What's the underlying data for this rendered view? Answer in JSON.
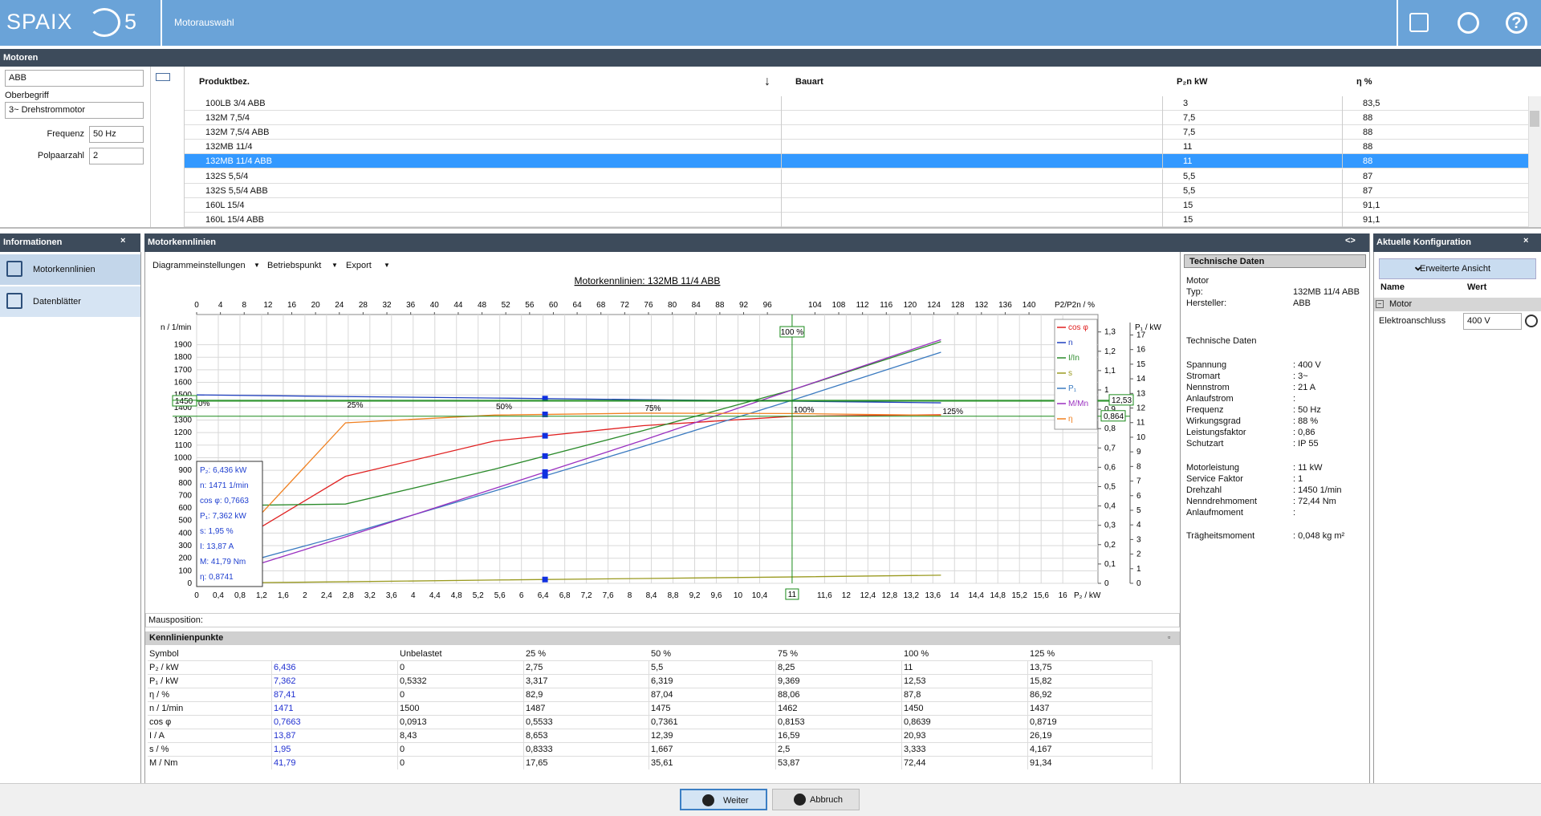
{
  "header": {
    "logo": "SPAIX",
    "logo_version": "5",
    "title": "Motorauswahl"
  },
  "motors_panel": {
    "title": "Motoren",
    "manufacturer": "ABB",
    "oberbegriff_label": "Oberbegriff",
    "oberbegriff": "3~ Drehstrommotor",
    "frequenz_label": "Frequenz",
    "frequenz": "50 Hz",
    "polpaarzahl_label": "Polpaarzahl",
    "polpaarzahl": "2"
  },
  "motor_table": {
    "columns": [
      "Produktbez.",
      "Bauart",
      "P₂n kW",
      "η %"
    ],
    "selected_row": 4,
    "rows": [
      [
        "100LB 3/4 ABB",
        "3",
        "83,5"
      ],
      [
        "132M 7,5/4",
        "7,5",
        "88"
      ],
      [
        "132M 7,5/4 ABB",
        "7,5",
        "88"
      ],
      [
        "132MB 11/4",
        "11",
        "88"
      ],
      [
        "132MB 11/4 ABB",
        "11",
        "88"
      ],
      [
        "132S 5,5/4",
        "5,5",
        "87"
      ],
      [
        "132S 5,5/4 ABB",
        "5,5",
        "87"
      ],
      [
        "160L 15/4",
        "15",
        "91,1"
      ],
      [
        "160L 15/4 ABB",
        "15",
        "91,1"
      ]
    ]
  },
  "info_panel": {
    "title": "Informationen",
    "close": "×",
    "items": [
      "Motorkennlinien",
      "Datenblätter"
    ]
  },
  "kennlinien_panel": {
    "title": "Motorkennlinien",
    "toggle": "<>",
    "toolbar": [
      "Diagrammeinstellungen",
      "Betriebspunkt",
      "Export"
    ],
    "mouse_label": "Mausposition:"
  },
  "chart_data": {
    "type": "line",
    "title": "Motorkennlinien: 132MB 11/4 ABB",
    "x_label": "P₂ / kW",
    "x2_label": "P2/P2n / %",
    "y_label": "n / 1/min",
    "y3_label": "P₁ / kW",
    "xlim": [
      0,
      16.65
    ],
    "xticks": [
      0,
      {
        "value": 0.4,
        "label": "0,4"
      },
      {
        "value": 0.8,
        "label": "0,8"
      },
      {
        "value": 1.2,
        "label": "1,2"
      },
      {
        "value": 1.6,
        "label": "1,6"
      },
      2,
      {
        "value": 2.4,
        "label": "2,4"
      },
      {
        "value": 2.8,
        "label": "2,8"
      },
      {
        "value": 3.2,
        "label": "3,2"
      },
      {
        "value": 3.6,
        "label": "3,6"
      },
      4,
      {
        "value": 4.4,
        "label": "4,4"
      },
      {
        "value": 4.8,
        "label": "4,8"
      },
      {
        "value": 5.2,
        "label": "5,2"
      },
      {
        "value": 5.6,
        "label": "5,6"
      },
      6,
      {
        "value": 6.4,
        "label": "6,4"
      },
      {
        "value": 6.8,
        "label": "6,8"
      },
      {
        "value": 7.2,
        "label": "7,2"
      },
      {
        "value": 7.6,
        "label": "7,6"
      },
      8,
      {
        "value": 8.4,
        "label": "8,4"
      },
      {
        "value": 8.8,
        "label": "8,8"
      },
      {
        "value": 9.2,
        "label": "9,2"
      },
      {
        "value": 9.6,
        "label": "9,6"
      },
      10,
      {
        "value": 10.4,
        "label": "10,4"
      },
      {
        "value": 11.6,
        "label": "11,6"
      },
      12,
      {
        "value": 12.4,
        "label": "12,4"
      },
      {
        "value": 12.8,
        "label": "12,8"
      },
      {
        "value": 13.2,
        "label": "13,2"
      },
      {
        "value": 13.6,
        "label": "13,6"
      },
      14,
      {
        "value": 14.4,
        "label": "14,4"
      },
      {
        "value": 14.8,
        "label": "14,8"
      },
      {
        "value": 15.2,
        "label": "15,2"
      },
      {
        "value": 15.6,
        "label": "15,6"
      },
      16
    ],
    "x2lim": [
      0,
      151.6
    ],
    "x2ticks": [
      0,
      4,
      8,
      12,
      16,
      20,
      24,
      28,
      32,
      36,
      40,
      44,
      48,
      52,
      56,
      60,
      64,
      68,
      72,
      76,
      80,
      84,
      88,
      92,
      96,
      104,
      108,
      112,
      116,
      120,
      124,
      128,
      132,
      136,
      140
    ],
    "ylim": [
      0,
      2140
    ],
    "yticks": [
      0,
      100,
      200,
      300,
      400,
      500,
      600,
      700,
      800,
      900,
      1000,
      1100,
      1200,
      1300,
      1400,
      1500,
      1600,
      1700,
      1800,
      1900
    ],
    "y2lim": [
      0,
      1.39
    ],
    "y2ticks": [
      0,
      {
        "value": 0.1,
        "label": "0,1"
      },
      {
        "value": 0.2,
        "label": "0,2"
      },
      {
        "value": 0.3,
        "label": "0,3"
      },
      {
        "value": 0.4,
        "label": "0,4"
      },
      {
        "value": 0.5,
        "label": "0,5"
      },
      {
        "value": 0.6,
        "label": "0,6"
      },
      {
        "value": 0.7,
        "label": "0,7"
      },
      {
        "value": 0.8,
        "label": "0,8"
      },
      {
        "value": 0.9,
        "label": "0,9"
      },
      1,
      {
        "value": 1.1,
        "label": "1,1"
      },
      {
        "value": 1.2,
        "label": "1,2"
      },
      {
        "value": 1.3,
        "label": "1,3"
      }
    ],
    "y3lim": [
      0,
      18.4
    ],
    "y3ticks": [
      0,
      1,
      2,
      3,
      4,
      5,
      6,
      7,
      8,
      9,
      10,
      11,
      12,
      13,
      14,
      15,
      16,
      17
    ],
    "grid": true,
    "legend": "top-right",
    "x": [
      0,
      2.75,
      5.5,
      8.25,
      11,
      13.75
    ],
    "series": [
      {
        "name": "cos φ",
        "color": "#e02020",
        "axis": "y2",
        "values": [
          0.0913,
          0.5533,
          0.7361,
          0.8153,
          0.8639,
          0.8719
        ]
      },
      {
        "name": "n",
        "color": "#1f3fbf",
        "axis": "y",
        "values": [
          1500,
          1487,
          1475,
          1462,
          1450,
          1437
        ]
      },
      {
        "name": "I/In",
        "color": "#2a8a2a",
        "axis": "y2",
        "values": [
          0.4,
          0.41,
          0.59,
          0.79,
          1.0,
          1.25
        ]
      },
      {
        "name": "s",
        "color": "#9a9a20",
        "axis": "y2",
        "values": [
          0,
          0.008,
          0.017,
          0.025,
          0.033,
          0.042
        ]
      },
      {
        "name": "P₁",
        "color": "#3a7ac0",
        "axis": "y3",
        "values": [
          0.5332,
          3.317,
          6.319,
          9.369,
          12.53,
          15.82
        ]
      },
      {
        "name": "M/Mn",
        "color": "#9a30c0",
        "axis": "y2",
        "values": [
          0,
          0.24,
          0.49,
          0.74,
          1.0,
          1.26
        ]
      },
      {
        "name": "η",
        "color": "#f08020",
        "axis": "y2",
        "values": [
          0,
          0.83,
          0.87,
          0.88,
          0.878,
          0.869
        ]
      }
    ],
    "load_labels": [
      "0%",
      "25%",
      "50%",
      "75%",
      "100%",
      "125%"
    ],
    "operating_point": {
      "x": {
        "value": 11,
        "label": "11"
      },
      "x2": {
        "value": 100,
        "label": "100 %"
      },
      "y": {
        "value": 1450,
        "label": "1450"
      },
      "y3": {
        "value": 12.53,
        "label": "12,53"
      },
      "y2": {
        "value": 0.864,
        "label": "0,864"
      }
    },
    "cursor_x": 6.436,
    "cursor_box": [
      "P₂: 6,436 kW",
      "n: 1471 1/min",
      "cos φ: 0,7663",
      "P₁: 7,362 kW",
      "s: 1,95 %",
      "I: 13,87 A",
      "M: 41,79 Nm",
      "η: 0,8741"
    ]
  },
  "points_table": {
    "title": "Kennlinienpunkte",
    "columns": [
      "Symbol",
      null,
      "Unbelastet",
      "25 %",
      "50 %",
      "75 %",
      "100 %",
      "125 %"
    ],
    "rows": [
      [
        "P₂ / kW",
        "6,436",
        "0",
        "2,75",
        "5,5",
        "8,25",
        "11",
        "13,75"
      ],
      [
        "P₁ / kW",
        "7,362",
        "0,5332",
        "3,317",
        "6,319",
        "9,369",
        "12,53",
        "15,82"
      ],
      [
        "η / %",
        "87,41",
        "0",
        "82,9",
        "87,04",
        "88,06",
        "87,8",
        "86,92"
      ],
      [
        "n / 1/min",
        "1471",
        "1500",
        "1487",
        "1475",
        "1462",
        "1450",
        "1437"
      ],
      [
        "cos φ",
        "0,7663",
        "0,0913",
        "0,5533",
        "0,7361",
        "0,8153",
        "0,8639",
        "0,8719"
      ],
      [
        "I / A",
        "13,87",
        "8,43",
        "8,653",
        "12,39",
        "16,59",
        "20,93",
        "26,19"
      ],
      [
        "s / %",
        "1,95",
        "0",
        "0,8333",
        "1,667",
        "2,5",
        "3,333",
        "4,167"
      ],
      [
        "M / Nm",
        "41,79",
        "0",
        "17,65",
        "35,61",
        "53,87",
        "72,44",
        "91,34"
      ]
    ]
  },
  "tech_panel": {
    "title": "Technische Daten",
    "groups": [
      [
        [
          "Motor"
        ],
        [
          "Typ:",
          "132MB 11/4 ABB"
        ],
        [
          "Hersteller:",
          "ABB"
        ]
      ],
      [
        [
          "Technische Daten"
        ]
      ],
      [
        [
          "Spannung",
          ": 400 V"
        ],
        [
          "Stromart",
          ": 3~"
        ],
        [
          "Nennstrom",
          ": 21 A"
        ],
        [
          "Anlaufstrom",
          ":"
        ],
        [
          "Frequenz",
          ": 50 Hz"
        ],
        [
          "Wirkungsgrad",
          ": 88 %"
        ],
        [
          "Leistungsfaktor",
          ": 0,86"
        ],
        [
          "Schutzart",
          ": IP 55"
        ]
      ],
      [
        [
          "Motorleistung",
          ": 11 kW"
        ],
        [
          "Service Faktor",
          ": 1"
        ],
        [
          "Drehzahl",
          ": 1450 1/min"
        ],
        [
          "Nenndrehmoment",
          ": 72,44 Nm"
        ],
        [
          "Anlaufmoment",
          ":"
        ]
      ],
      [
        [
          "Trägheitsmoment",
          ": 0,048 kg m²"
        ]
      ]
    ]
  },
  "config_panel": {
    "title": "Aktuelle Konfiguration",
    "close": "×",
    "button": "Erweiterte Ansicht",
    "col_name": "Name",
    "col_value": "Wert",
    "group": "Motor",
    "row_label": "Elektroanschluss",
    "row_value": "400 V"
  },
  "buttons": [
    "Weiter",
    "Abbruch"
  ]
}
